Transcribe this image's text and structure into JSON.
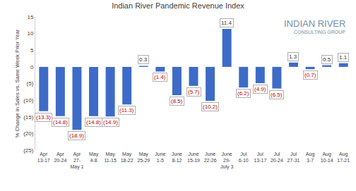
{
  "chart_data": {
    "type": "bar",
    "title": "Indian River Pandemic Revenue Index",
    "y_label": "% Change in Sales vs. Same Week Prior Year",
    "annotations": [
      "INDIAN RIVER",
      "CONSULTING GROUP"
    ],
    "categories": [
      "Apr\n13-17",
      "Apr\n20-24",
      "Apr\n27-\nMay 1",
      "May\n4-8",
      "May\n11-15",
      "May\n18-22",
      "May\n25-29",
      "June\n1-5",
      "June\n8-12",
      "June\n15-19",
      "June\n22-26",
      "June\n29-\nJuly 3",
      "Jul\n6-10",
      "Jul\n13-17",
      "Jul\n20-24",
      "Jul\n27-31",
      "Aug\n3-7",
      "Aug\n10-14",
      "Aug\n17-21"
    ],
    "values": [
      -13.3,
      -14.8,
      -18.9,
      -14.8,
      -14.9,
      -11.3,
      0.3,
      -1.4,
      -8.5,
      -5.7,
      -10.2,
      11.4,
      -6.2,
      -4.9,
      -6.5,
      1.3,
      -0.7,
      0.5,
      1.1
    ],
    "value_labels": [
      "(13.3)",
      "(14.8)",
      "(18.9)",
      "(14.8)",
      "(14.9)",
      "(11.3)",
      "0.3",
      "(1.4)",
      "(8.5)",
      "(5.7)",
      "(10.2)",
      "11.4",
      "(6.2)",
      "(4.9)",
      "(6.5)",
      "1.3",
      "(0.7)",
      "0.5",
      "1.1"
    ],
    "color": "#3d6bc7",
    "ylim": [
      -25,
      15
    ],
    "yticks": [
      {
        "value": -25,
        "label": "(25)"
      },
      {
        "value": -20,
        "label": "(20)"
      },
      {
        "value": -15,
        "label": "(15)"
      },
      {
        "value": -10,
        "label": "(10)"
      },
      {
        "value": -5,
        "label": "(5)"
      },
      0,
      5,
      10,
      15
    ],
    "grid": false,
    "data_labels": true
  }
}
